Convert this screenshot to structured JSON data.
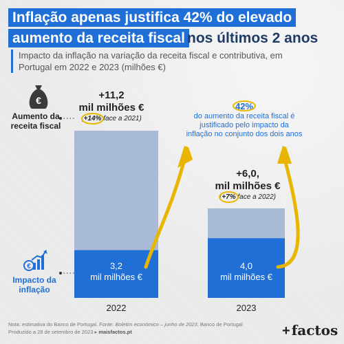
{
  "title": {
    "line1": "Inflação apenas justifica 42% do elevado",
    "line2_highlight": "aumento da receita fiscal",
    "line2_tail": "nos últimos 2 anos"
  },
  "subtitle": "Impacto da inflação na variação da receita fiscal e contributiva, em Portugal em 2022 e 2023 (milhões €)",
  "side_labels": {
    "revenue": "Aumento da receita fiscal",
    "inflation": "Impacto da inflação"
  },
  "icons": {
    "revenue": "money-bag-euro-icon",
    "inflation": "growth-chart-euro-icon"
  },
  "colors": {
    "accent": "#1f6fd6",
    "total_bar": "#a9bad6",
    "inflation_bar": "#1f6fd6",
    "arrow": "#e8b600"
  },
  "chart_data": {
    "type": "bar",
    "stacked": true,
    "categories": [
      "2022",
      "2023"
    ],
    "series": [
      {
        "values": [
          3.2,
          4.0
        ],
        "labels": [
          "3,2",
          "4,0"
        ],
        "unit": "mil milhões €"
      },
      {
        "values": [
          8.0,
          2.0
        ]
      }
    ],
    "totals": [
      11.2,
      6.0
    ],
    "total_labels": [
      {
        "value": "+11,2",
        "unit": "mil milhões €",
        "change_pct": "+14%",
        "change_text": "face a 2021"
      },
      {
        "value": "+6,0,",
        "unit": "mil milhões €",
        "change_pct": "+7%",
        "change_text": "face a 2022"
      }
    ],
    "annotation": {
      "pct": "42%",
      "text": "do aumento da receita fiscal é justificado pelo impacto da inflação no conjunto dos dois anos"
    }
  },
  "note": {
    "prefix": "Nota: estimativa do Banco de Portugal. Fonte: ",
    "source_italic": "Boletim económico – junho de 2023",
    "source_tail": ", Banco de Portugal",
    "produced": "Produzido a 28 de setembro de 2023 ▸ ",
    "site": "maisfactos.pt"
  },
  "brand": {
    "plus": "+",
    "name": "factos"
  }
}
